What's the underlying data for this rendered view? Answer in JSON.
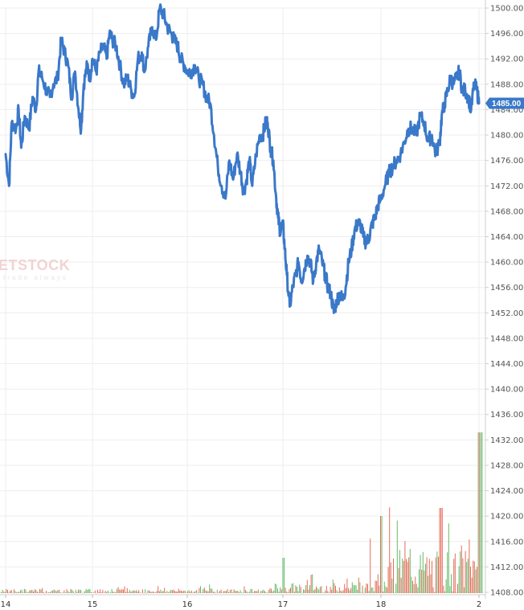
{
  "chart_data": {
    "type": "line",
    "price_axis": {
      "ylim": [
        1408,
        1500
      ],
      "ticks": [
        "1500.00",
        "1496.00",
        "1492.00",
        "1488.00",
        "1484.00",
        "1480.00",
        "1476.00",
        "1472.00",
        "1468.00",
        "1464.00",
        "1460.00",
        "1456.00",
        "1452.00",
        "1448.00",
        "1444.00",
        "1440.00",
        "1436.00",
        "1432.00",
        "1428.00",
        "1424.00",
        "1420.00",
        "1416.00",
        "1412.00",
        "1408.00"
      ],
      "side": "right"
    },
    "x_ticks": [
      "14",
      "15",
      "16",
      "17",
      "18",
      "2"
    ],
    "last_price": "1485.00",
    "grid": true,
    "colors": {
      "line": "#3a78c9",
      "badge": "#3a78c9",
      "volume_up": "#4caf50",
      "volume_down": "#e0533c",
      "grid": "#eeeeee"
    },
    "series": [
      {
        "values": [
          [
            14.0,
            1477
          ],
          [
            14.04,
            1472
          ],
          [
            14.07,
            1482
          ],
          [
            14.12,
            1481
          ],
          [
            14.15,
            1484
          ],
          [
            14.18,
            1478
          ],
          [
            14.22,
            1483
          ],
          [
            14.27,
            1481
          ],
          [
            14.31,
            1486
          ],
          [
            14.35,
            1484
          ],
          [
            14.38,
            1490
          ],
          [
            14.42,
            1489
          ],
          [
            14.47,
            1487
          ],
          [
            14.51,
            1486
          ],
          [
            14.55,
            1488
          ],
          [
            14.6,
            1489
          ],
          [
            14.64,
            1495
          ],
          [
            14.68,
            1493
          ],
          [
            14.72,
            1491
          ],
          [
            14.76,
            1486
          ],
          [
            14.8,
            1490
          ],
          [
            14.84,
            1484
          ],
          [
            14.87,
            1481
          ],
          [
            14.9,
            1488
          ],
          [
            14.94,
            1491
          ],
          [
            14.97,
            1489
          ],
          [
            15.0,
            1492
          ],
          [
            15.04,
            1490
          ],
          [
            15.08,
            1493
          ],
          [
            15.12,
            1494
          ],
          [
            15.15,
            1492
          ],
          [
            15.18,
            1496
          ],
          [
            15.21,
            1495
          ],
          [
            15.25,
            1494
          ],
          [
            15.29,
            1491
          ],
          [
            15.33,
            1488
          ],
          [
            15.37,
            1489
          ],
          [
            15.41,
            1487
          ],
          [
            15.44,
            1486
          ],
          [
            15.48,
            1492
          ],
          [
            15.52,
            1493
          ],
          [
            15.55,
            1490
          ],
          [
            15.59,
            1494
          ],
          [
            15.63,
            1497
          ],
          [
            15.67,
            1495
          ],
          [
            15.71,
            1500
          ],
          [
            15.75,
            1499
          ],
          [
            15.79,
            1497
          ],
          [
            15.83,
            1496
          ],
          [
            15.86,
            1495
          ],
          [
            15.9,
            1494
          ],
          [
            15.93,
            1492
          ],
          [
            15.97,
            1491
          ],
          [
            16.0,
            1490
          ],
          [
            16.04,
            1490
          ],
          [
            16.08,
            1491
          ],
          [
            16.12,
            1489
          ],
          [
            16.16,
            1488
          ],
          [
            16.2,
            1486
          ],
          [
            16.24,
            1485
          ],
          [
            16.28,
            1480
          ],
          [
            16.32,
            1475
          ],
          [
            16.36,
            1472
          ],
          [
            16.4,
            1470
          ],
          [
            16.44,
            1476
          ],
          [
            16.48,
            1473
          ],
          [
            16.52,
            1477
          ],
          [
            16.56,
            1474
          ],
          [
            16.59,
            1471
          ],
          [
            16.62,
            1473
          ],
          [
            16.65,
            1476
          ],
          [
            16.68,
            1472
          ],
          [
            16.72,
            1477
          ],
          [
            16.76,
            1480
          ],
          [
            16.79,
            1480
          ],
          [
            16.82,
            1482
          ],
          [
            16.84,
            1482
          ],
          [
            16.87,
            1478
          ],
          [
            16.9,
            1476
          ],
          [
            16.93,
            1470
          ],
          [
            16.95,
            1467
          ],
          [
            16.97,
            1465
          ],
          [
            17.0,
            1466
          ],
          [
            17.02,
            1462
          ],
          [
            17.04,
            1458
          ],
          [
            17.07,
            1453
          ],
          [
            17.1,
            1456
          ],
          [
            17.13,
            1458
          ],
          [
            17.16,
            1460
          ],
          [
            17.19,
            1457
          ],
          [
            17.22,
            1459
          ],
          [
            17.25,
            1461
          ],
          [
            17.28,
            1460
          ],
          [
            17.31,
            1457
          ],
          [
            17.34,
            1460
          ],
          [
            17.37,
            1462
          ],
          [
            17.4,
            1460
          ],
          [
            17.43,
            1458
          ],
          [
            17.46,
            1456
          ],
          [
            17.49,
            1455
          ],
          [
            17.52,
            1452
          ],
          [
            17.55,
            1454
          ],
          [
            17.58,
            1455
          ],
          [
            17.61,
            1454
          ],
          [
            17.64,
            1456
          ],
          [
            17.67,
            1460
          ],
          [
            17.7,
            1462
          ],
          [
            17.73,
            1465
          ],
          [
            17.76,
            1466
          ],
          [
            17.79,
            1466
          ],
          [
            17.82,
            1464
          ],
          [
            17.85,
            1463
          ],
          [
            17.88,
            1464
          ],
          [
            17.91,
            1466
          ],
          [
            17.94,
            1467
          ],
          [
            17.97,
            1469
          ],
          [
            18.0,
            1470
          ],
          [
            18.04,
            1472
          ],
          [
            18.08,
            1474
          ],
          [
            18.12,
            1475
          ],
          [
            18.16,
            1476
          ],
          [
            18.2,
            1477
          ],
          [
            18.24,
            1479
          ],
          [
            18.28,
            1481
          ],
          [
            18.32,
            1481
          ],
          [
            18.36,
            1480
          ],
          [
            18.4,
            1483
          ],
          [
            18.44,
            1482
          ],
          [
            18.48,
            1479
          ],
          [
            18.52,
            1480
          ],
          [
            18.56,
            1477
          ],
          [
            18.6,
            1479
          ],
          [
            18.62,
            1483
          ],
          [
            18.65,
            1485
          ],
          [
            18.68,
            1487
          ],
          [
            18.71,
            1489
          ],
          [
            18.74,
            1488
          ],
          [
            18.77,
            1489
          ],
          [
            18.8,
            1490
          ],
          [
            18.83,
            1487
          ],
          [
            18.86,
            1487
          ],
          [
            18.89,
            1486
          ],
          [
            18.92,
            1484
          ],
          [
            18.95,
            1488
          ],
          [
            18.98,
            1487
          ],
          [
            19.0,
            1485
          ]
        ]
      }
    ],
    "volume": {
      "values_note_units": "relative",
      "series": []
    }
  },
  "watermark": {
    "main": "ETSTOCK",
    "sub": "trade always"
  }
}
